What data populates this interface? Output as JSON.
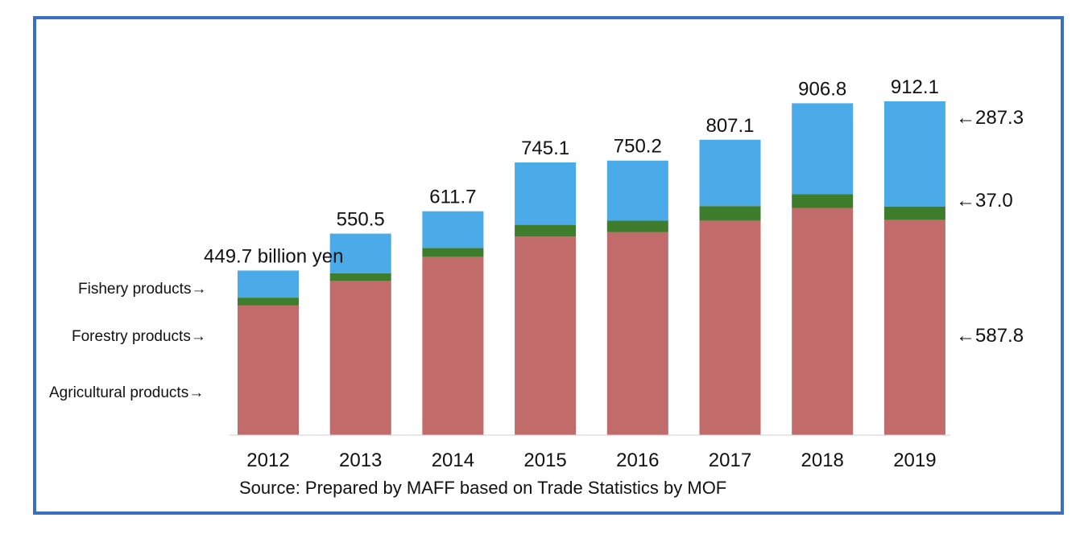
{
  "chart_data": {
    "type": "bar",
    "stacked": true,
    "categories": [
      "2012",
      "2013",
      "2014",
      "2015",
      "2016",
      "2017",
      "2018",
      "2019"
    ],
    "series": [
      {
        "name": "Agricultural products",
        "color": "#c16b6a",
        "values": [
          354.1,
          421.5,
          487.0,
          542.5,
          554.8,
          586.0,
          621.0,
          587.8
        ]
      },
      {
        "name": "Forestry products",
        "color": "#3e7d2c",
        "values": [
          21.6,
          21.0,
          24.5,
          32.0,
          31.0,
          40.0,
          37.5,
          37.0
        ]
      },
      {
        "name": "Fishery products",
        "color": "#4aabe8",
        "values": [
          74.0,
          108.0,
          100.2,
          170.6,
          164.4,
          181.1,
          248.3,
          287.3
        ]
      }
    ],
    "totals": [
      "449.7 billion yen",
      "550.5",
      "611.7",
      "745.1",
      "750.2",
      "807.1",
      "906.8",
      "912.1"
    ],
    "legend_labels": [
      "Fishery products→",
      "Forestry products→",
      "Agricultural products→"
    ],
    "right_annotations": [
      "←287.3",
      "←37.0",
      "←587.8"
    ],
    "source": "Source: Prepared by MAFF based on Trade Statistics by MOF",
    "ylim": [
      0,
      1000
    ],
    "grid": false
  }
}
